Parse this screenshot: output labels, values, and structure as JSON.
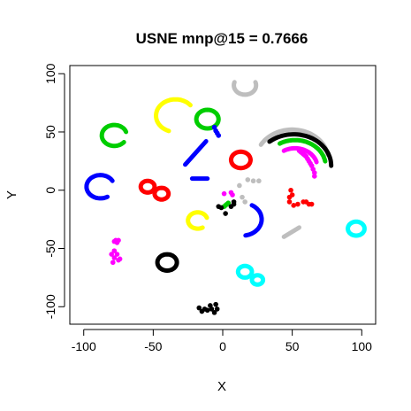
{
  "chart_data": {
    "type": "scatter",
    "title": "USNE mnp@15 = 0.7666",
    "xlabel": "X",
    "ylabel": "Y",
    "xlim": [
      -110,
      110
    ],
    "ylim": [
      -115,
      107
    ],
    "xticks": [
      -100,
      -50,
      0,
      50,
      100
    ],
    "yticks": [
      -100,
      -50,
      0,
      50,
      100
    ],
    "xtick_labels": [
      "-100",
      "-50",
      "0",
      "50",
      "100"
    ],
    "ytick_labels": [
      "-100",
      "-50",
      "0",
      "50",
      "100"
    ],
    "grid": false,
    "legend": "none",
    "clusters": [
      {
        "color": "#FFFF00",
        "shape": "arc",
        "cx": -34,
        "cy": 64,
        "r": 14,
        "start": 40,
        "end": 250
      },
      {
        "color": "#BEBEBE",
        "shape": "arc",
        "cx": 16,
        "cy": 90,
        "r": 8,
        "start": 160,
        "end": 380
      },
      {
        "color": "#00CD00",
        "shape": "loop",
        "cx": -11,
        "cy": 61,
        "r": 8
      },
      {
        "color": "#00CD00",
        "shape": "arc",
        "cx": -78,
        "cy": 47,
        "r": 9,
        "start": 20,
        "end": 320
      },
      {
        "color": "#0000FF",
        "shape": "line",
        "x1": -27,
        "y1": 22,
        "x2": -12,
        "y2": 42
      },
      {
        "color": "#0000FF",
        "shape": "dots",
        "points": [
          [
            -6,
            54
          ],
          [
            -5,
            51
          ],
          [
            -4,
            49
          ],
          [
            -3,
            47
          ]
        ]
      },
      {
        "color": "#0000FF",
        "shape": "line",
        "x1": -22,
        "y1": 10,
        "x2": -11,
        "y2": 10
      },
      {
        "color": "#FF0000",
        "shape": "loop",
        "cx": 13,
        "cy": 26,
        "r": 7
      },
      {
        "color": "#0000FF",
        "shape": "arc",
        "cx": -88,
        "cy": 3,
        "r": 10,
        "start": 30,
        "end": 300
      },
      {
        "color": "#FF0000",
        "shape": "loop",
        "cx": -54,
        "cy": 3,
        "r": 5
      },
      {
        "color": "#FF0000",
        "shape": "loop",
        "cx": -44,
        "cy": -3,
        "r": 5
      },
      {
        "color": "#FFFF00",
        "shape": "arc",
        "cx": -18,
        "cy": -26,
        "r": 7,
        "start": 20,
        "end": 300
      },
      {
        "color": "#BEBEBE",
        "shape": "dots",
        "points": [
          [
            18,
            9
          ],
          [
            22,
            8
          ],
          [
            26,
            8
          ],
          [
            12,
            4
          ],
          [
            14,
            -6
          ],
          [
            16,
            -10
          ]
        ]
      },
      {
        "color": "#FF00FF",
        "shape": "dots",
        "points": [
          [
            1,
            -3
          ],
          [
            6,
            -2
          ],
          [
            7,
            -4
          ]
        ]
      },
      {
        "color": "#00CD00",
        "shape": "dots",
        "points": [
          [
            1,
            -14
          ],
          [
            2,
            -13
          ],
          [
            3,
            -12
          ],
          [
            4,
            -11
          ]
        ]
      },
      {
        "color": "#000000",
        "shape": "dots",
        "points": [
          [
            -3,
            -14
          ],
          [
            -1,
            -15
          ],
          [
            2,
            -20
          ],
          [
            6,
            -14
          ],
          [
            8,
            -10
          ],
          [
            8,
            -12
          ]
        ]
      },
      {
        "color": "#0000FF",
        "shape": "arc",
        "cx": 14,
        "cy": -25,
        "r": 14,
        "start": -80,
        "end": 60
      },
      {
        "color": "#FF0000",
        "shape": "dots",
        "points": [
          [
            49,
            0
          ],
          [
            50,
            -4
          ],
          [
            48,
            -6
          ],
          [
            48,
            -10
          ],
          [
            51,
            -13
          ],
          [
            54,
            -12
          ],
          [
            58,
            -10
          ],
          [
            60,
            -10
          ],
          [
            62,
            -12
          ],
          [
            64,
            -12
          ]
        ]
      },
      {
        "color": "#BEBEBE",
        "shape": "line",
        "x1": 44,
        "y1": -40,
        "x2": 55,
        "y2": -32
      },
      {
        "color": "#00FFFF",
        "shape": "loop",
        "cx": 96,
        "cy": -33,
        "r": 6
      },
      {
        "color": "#00FFFF",
        "shape": "loop",
        "cx": 16,
        "cy": -70,
        "r": 5
      },
      {
        "color": "#00FFFF",
        "shape": "loop",
        "cx": 25,
        "cy": -77,
        "r": 4
      },
      {
        "color": "#FF00FF",
        "shape": "dots",
        "points": [
          [
            -78,
            -44
          ],
          [
            -77,
            -43
          ],
          [
            -76,
            -45
          ],
          [
            -75,
            -43
          ],
          [
            -78,
            -52
          ],
          [
            -80,
            -55
          ],
          [
            -78,
            -58
          ],
          [
            -76,
            -55
          ],
          [
            -74,
            -59
          ],
          [
            -79,
            -62
          ],
          [
            -75,
            -60
          ]
        ]
      },
      {
        "color": "#000000",
        "shape": "loop",
        "cx": -40,
        "cy": -62,
        "r": 7
      },
      {
        "color": "#000000",
        "shape": "dots",
        "points": [
          [
            -17,
            -101
          ],
          [
            -15,
            -104
          ],
          [
            -13,
            -102
          ],
          [
            -11,
            -103
          ],
          [
            -9,
            -99
          ],
          [
            -8,
            -102
          ],
          [
            -6,
            -105
          ],
          [
            -5,
            -98
          ],
          [
            -4,
            -102
          ]
        ]
      },
      {
        "color": "#BEBEBE",
        "shape": "arc",
        "cx": 50,
        "cy": 26,
        "r": 26,
        "start": 10,
        "end": 150
      },
      {
        "color": "#000000",
        "shape": "arc",
        "cx": 51,
        "cy": 21,
        "r": 27,
        "start": 0,
        "end": 130
      },
      {
        "color": "#00CD00",
        "shape": "arc",
        "cx": 52,
        "cy": 21,
        "r": 22,
        "start": 10,
        "end": 120
      },
      {
        "color": "#FF00FF",
        "shape": "arc",
        "cx": 52,
        "cy": 20,
        "r": 16,
        "start": 15,
        "end": 120
      },
      {
        "color": "#FF00FF",
        "shape": "dots",
        "points": [
          [
            55,
            34
          ],
          [
            56,
            33
          ],
          [
            57,
            32
          ],
          [
            58,
            31
          ],
          [
            59,
            30
          ],
          [
            60,
            29
          ],
          [
            61,
            27
          ],
          [
            62,
            25
          ],
          [
            63,
            23
          ],
          [
            64,
            21
          ],
          [
            65,
            18
          ],
          [
            66,
            15
          ],
          [
            66,
            12
          ]
        ]
      }
    ]
  }
}
